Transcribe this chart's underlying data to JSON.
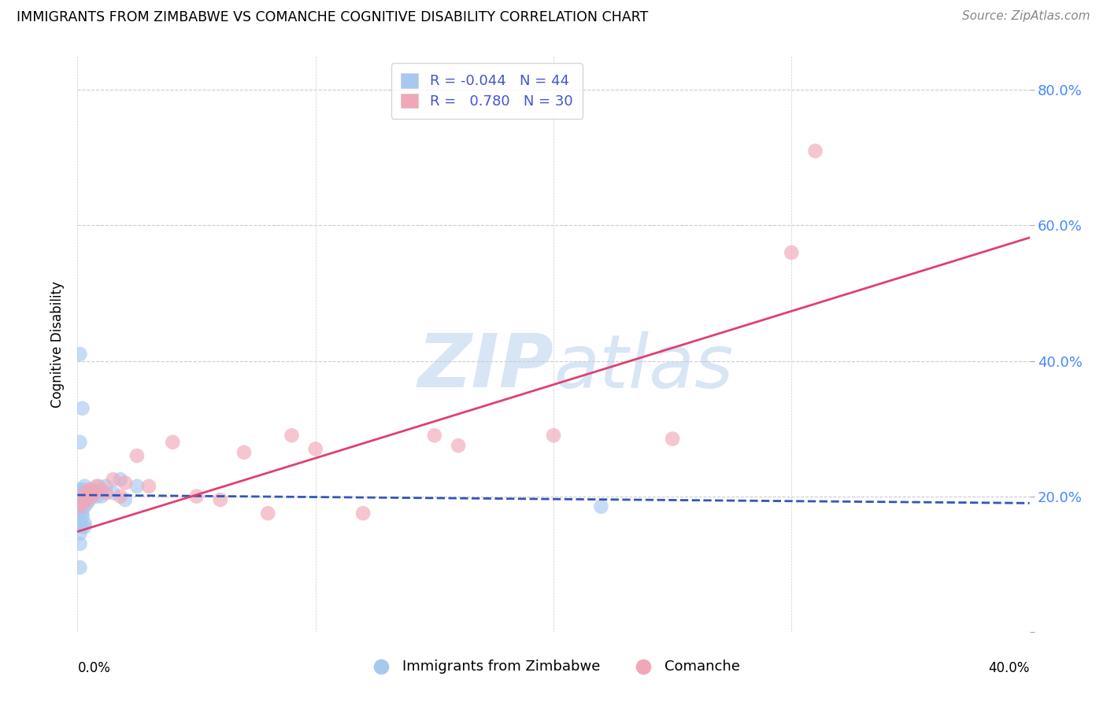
{
  "title": "IMMIGRANTS FROM ZIMBABWE VS COMANCHE COGNITIVE DISABILITY CORRELATION CHART",
  "source": "Source: ZipAtlas.com",
  "ylabel": "Cognitive Disability",
  "xlim": [
    0.0,
    0.4
  ],
  "ylim": [
    0.0,
    0.85
  ],
  "yticks": [
    0.0,
    0.2,
    0.4,
    0.6,
    0.8
  ],
  "right_ytick_labels": [
    "",
    "20.0%",
    "40.0%",
    "60.0%",
    "80.0%"
  ],
  "blue_color": "#A8C8F0",
  "pink_color": "#F0A8B8",
  "blue_line_color": "#3355BB",
  "pink_line_color": "#E04070",
  "background_color": "#FFFFFF",
  "grid_color": "#CCCCCC",
  "blue_scatter_x": [
    0.001,
    0.001,
    0.001,
    0.001,
    0.001,
    0.001,
    0.001,
    0.001,
    0.001,
    0.002,
    0.002,
    0.002,
    0.002,
    0.002,
    0.003,
    0.003,
    0.003,
    0.003,
    0.004,
    0.004,
    0.005,
    0.005,
    0.006,
    0.007,
    0.008,
    0.009,
    0.01,
    0.012,
    0.015,
    0.018,
    0.02,
    0.025,
    0.002,
    0.003,
    0.001,
    0.002,
    0.22,
    0.001,
    0.001,
    0.001,
    0.001,
    0.002,
    0.001,
    0.003
  ],
  "blue_scatter_y": [
    0.195,
    0.19,
    0.185,
    0.2,
    0.205,
    0.21,
    0.185,
    0.175,
    0.18,
    0.2,
    0.195,
    0.21,
    0.185,
    0.175,
    0.2,
    0.195,
    0.185,
    0.215,
    0.2,
    0.19,
    0.205,
    0.195,
    0.21,
    0.205,
    0.2,
    0.215,
    0.2,
    0.215,
    0.205,
    0.225,
    0.195,
    0.215,
    0.155,
    0.16,
    0.41,
    0.33,
    0.185,
    0.095,
    0.13,
    0.145,
    0.28,
    0.17,
    0.16,
    0.155
  ],
  "pink_scatter_x": [
    0.001,
    0.002,
    0.003,
    0.004,
    0.005,
    0.006,
    0.008,
    0.01,
    0.012,
    0.015,
    0.018,
    0.02,
    0.025,
    0.03,
    0.04,
    0.05,
    0.06,
    0.07,
    0.08,
    0.09,
    0.1,
    0.12,
    0.15,
    0.16,
    0.2,
    0.25,
    0.3,
    0.31,
    0.005,
    0.007
  ],
  "pink_scatter_y": [
    0.185,
    0.19,
    0.205,
    0.195,
    0.21,
    0.2,
    0.215,
    0.21,
    0.205,
    0.225,
    0.2,
    0.22,
    0.26,
    0.215,
    0.28,
    0.2,
    0.195,
    0.265,
    0.175,
    0.29,
    0.27,
    0.175,
    0.29,
    0.275,
    0.29,
    0.285,
    0.56,
    0.71,
    0.205,
    0.205
  ],
  "blue_line_x0": 0.0,
  "blue_line_x1": 0.4,
  "blue_line_y0": 0.202,
  "blue_line_y1": 0.19,
  "pink_line_x0": 0.0,
  "pink_line_x1": 0.4,
  "pink_line_y0": 0.148,
  "pink_line_y1": 0.582
}
